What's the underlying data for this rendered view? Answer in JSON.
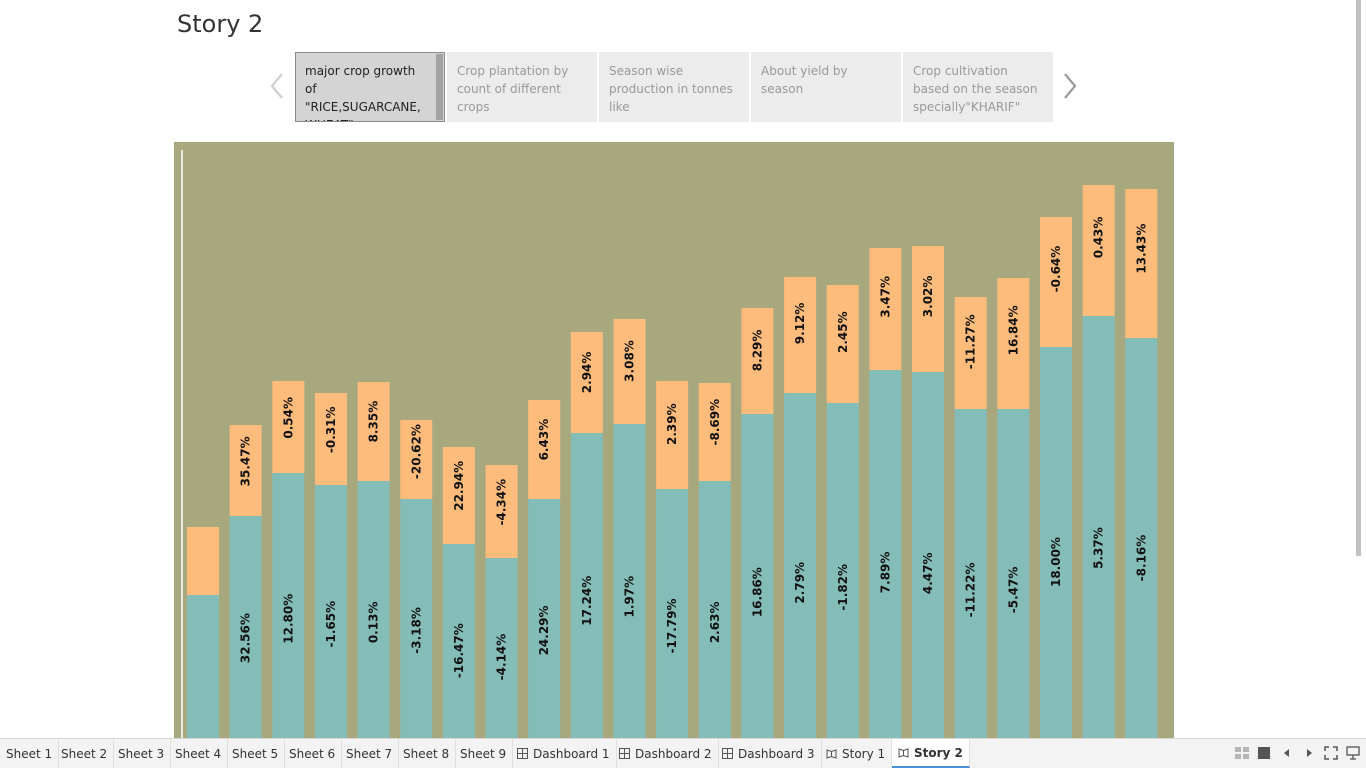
{
  "story": {
    "title": "Story 2",
    "points": [
      {
        "text": "major crop growth of \"RICE,SUGARCANE, WHEAT\"",
        "active": true
      },
      {
        "text": "Crop plantation by count of different crops",
        "active": false
      },
      {
        "text": "Season wise production in tonnes like",
        "active": false
      },
      {
        "text": "About yield by season",
        "active": false
      },
      {
        "text": "Crop cultivation based on the season specially\"KHARIF\"",
        "active": false
      }
    ]
  },
  "chart_data": {
    "type": "bar",
    "stacked": true,
    "colors": {
      "bottom": "#84bcb8",
      "top": "#fdbb7c",
      "background": "#a8a87e"
    },
    "series": [
      {
        "segment": "bottom",
        "values": [
          143,
          222,
          265,
          253,
          257,
          239,
          194,
          180,
          239,
          305,
          314,
          249,
          257,
          324,
          345,
          335,
          368,
          366,
          329,
          329,
          391,
          422,
          400
        ],
        "labels": [
          "",
          "32.56%",
          "12.80%",
          "-1.65%",
          "0.13%",
          "-3.18%",
          "-16.47%",
          "-4.14%",
          "24.29%",
          "17.24%",
          "1.97%",
          "-17.79%",
          "2.63%",
          "16.86%",
          "2.79%",
          "-1.82%",
          "7.89%",
          "4.47%",
          "-11.22%",
          "-5.47%",
          "18.00%",
          "5.37%",
          "-8.16%"
        ]
      },
      {
        "segment": "top",
        "values": [
          68,
          91,
          92,
          92,
          99,
          79,
          97,
          93,
          99,
          101,
          105,
          108,
          98,
          106,
          116,
          118,
          122,
          126,
          112,
          131,
          130,
          131,
          149
        ],
        "labels": [
          "",
          "35.47%",
          "0.54%",
          "-0.31%",
          "8.35%",
          "-20.62%",
          "22.94%",
          "-4.34%",
          "6.43%",
          "2.94%",
          "3.08%",
          "2.39%",
          "-8.69%",
          "8.29%",
          "9.12%",
          "2.45%",
          "3.47%",
          "3.02%",
          "-11.27%",
          "16.84%",
          "-0.64%",
          "0.43%",
          "13.43%"
        ]
      }
    ]
  },
  "tabs": [
    {
      "label": "Sheet 1",
      "icon": "none"
    },
    {
      "label": "Sheet 2",
      "icon": "none"
    },
    {
      "label": "Sheet 3",
      "icon": "none"
    },
    {
      "label": "Sheet 4",
      "icon": "none"
    },
    {
      "label": "Sheet 5",
      "icon": "none"
    },
    {
      "label": "Sheet 6",
      "icon": "none"
    },
    {
      "label": "Sheet 7",
      "icon": "none"
    },
    {
      "label": "Sheet 8",
      "icon": "none"
    },
    {
      "label": "Sheet 9",
      "icon": "none"
    },
    {
      "label": "Dashboard 1",
      "icon": "dashboard-icon"
    },
    {
      "label": "Dashboard 2",
      "icon": "dashboard-icon"
    },
    {
      "label": "Dashboard 3",
      "icon": "dashboard-icon"
    },
    {
      "label": "Story 1",
      "icon": "story-icon"
    },
    {
      "label": "Story 2",
      "icon": "story-icon",
      "active": true
    }
  ],
  "controls": [
    "sheet-sorter-icon",
    "filmstrip-icon",
    "prev-sheet-icon",
    "next-sheet-icon",
    "fullscreen-icon",
    "presentation-icon"
  ]
}
